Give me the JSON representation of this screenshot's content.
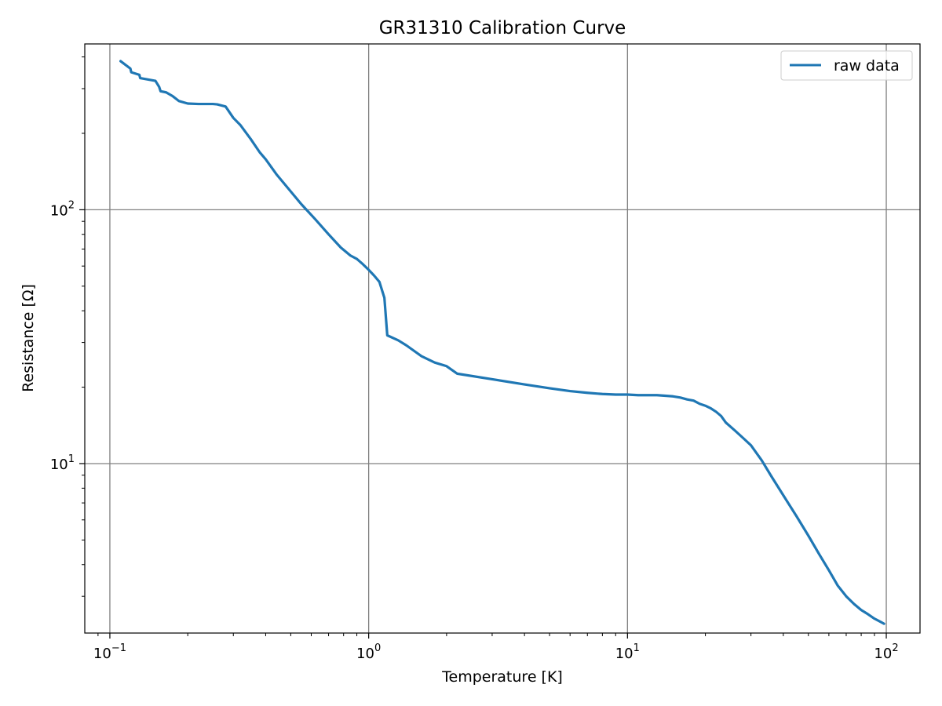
{
  "chart_data": {
    "type": "line",
    "title": "GR31310 Calibration Curve",
    "xlabel": "Temperature [K]",
    "ylabel": "Resistance [Ω]",
    "xscale": "log",
    "yscale": "log",
    "xlim": [
      0.08,
      135
    ],
    "ylim": [
      2.15,
      450
    ],
    "xticks": [
      {
        "value": 0.1,
        "base": "10",
        "exp": "−1"
      },
      {
        "value": 1,
        "base": "10",
        "exp": "0"
      },
      {
        "value": 10,
        "base": "10",
        "exp": "1"
      },
      {
        "value": 100,
        "base": "10",
        "exp": "2"
      }
    ],
    "yticks": [
      {
        "value": 10,
        "base": "10",
        "exp": "1"
      },
      {
        "value": 100,
        "base": "10",
        "exp": "2"
      }
    ],
    "grid": true,
    "legend": {
      "position": "top-right"
    },
    "series": [
      {
        "name": "raw data",
        "color": "#1f77b4",
        "x": [
          0.11,
          0.12,
          0.121,
          0.13,
          0.131,
          0.15,
          0.155,
          0.157,
          0.165,
          0.175,
          0.185,
          0.2,
          0.22,
          0.25,
          0.26,
          0.28,
          0.3,
          0.32,
          0.35,
          0.38,
          0.4,
          0.44,
          0.5,
          0.55,
          0.62,
          0.7,
          0.78,
          0.85,
          0.9,
          0.95,
          1.0,
          1.05,
          1.1,
          1.15,
          1.18,
          1.3,
          1.4,
          1.6,
          1.8,
          2.0,
          2.2,
          3.0,
          4.0,
          5.0,
          6.0,
          7.0,
          8.0,
          9.0,
          10.0,
          11.0,
          12.0,
          13.0,
          14.0,
          15.0,
          16.0,
          17.0,
          18.0,
          19.0,
          20.0,
          21.0,
          22.0,
          23.0,
          24.0,
          26.0,
          28.0,
          30.0,
          33.0,
          36.0,
          40.0,
          45.0,
          50.0,
          55.0,
          60.0,
          65.0,
          70.0,
          75.0,
          80.0,
          85.0,
          90.0,
          95.0,
          98.0
        ],
        "y": [
          385,
          360,
          348,
          340,
          330,
          322,
          305,
          293,
          290,
          280,
          268,
          262,
          261,
          261,
          260,
          255,
          230,
          215,
          190,
          168,
          158,
          138,
          118,
          105,
          92,
          80,
          71,
          66,
          64,
          61,
          58,
          55,
          52,
          45,
          32,
          30.6,
          29.2,
          26.5,
          25.0,
          24.2,
          22.6,
          21.5,
          20.5,
          19.8,
          19.3,
          19.0,
          18.8,
          18.7,
          18.7,
          18.6,
          18.6,
          18.6,
          18.5,
          18.4,
          18.2,
          17.9,
          17.7,
          17.2,
          16.9,
          16.5,
          16.0,
          15.4,
          14.5,
          13.5,
          12.6,
          11.8,
          10.3,
          8.9,
          7.5,
          6.2,
          5.2,
          4.4,
          3.8,
          3.3,
          3.0,
          2.8,
          2.65,
          2.55,
          2.45,
          2.38,
          2.34
        ]
      }
    ]
  }
}
